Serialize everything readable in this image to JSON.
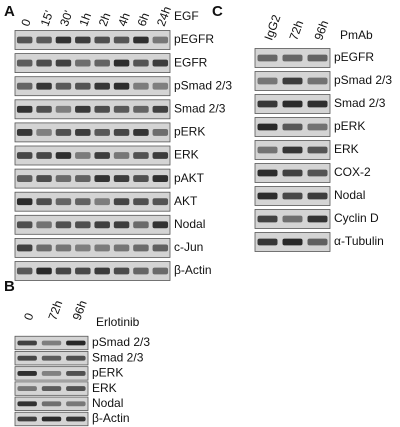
{
  "panels": [
    {
      "label": "A",
      "treatment": "EGF",
      "lanes": [
        "0",
        "15'",
        "30'",
        "1h",
        "2h",
        "4h",
        "6h",
        "24h"
      ],
      "rows": [
        "pEGFR",
        "EGFR",
        "pSmad 2/3",
        "Smad 2/3",
        "pERK",
        "ERK",
        "pAKT",
        "AKT",
        "Nodal",
        "c-Jun",
        "β-Actin"
      ]
    },
    {
      "label": "B",
      "treatment": "Erlotinib",
      "lanes": [
        "0",
        "72h",
        "96h"
      ],
      "rows": [
        "pSmad 2/3",
        "Smad 2/3",
        "pERK",
        "ERK",
        "Nodal",
        "β-Actin"
      ]
    },
    {
      "label": "C",
      "treatment": "PmAb",
      "lanes": [
        "IgG2",
        "72h",
        "96h"
      ],
      "rows": [
        "pEGFR",
        "pSmad 2/3",
        "Smad 2/3",
        "pERK",
        "ERK",
        "COX-2",
        "Nodal",
        "Cyclin D",
        "α-Tubulin"
      ]
    }
  ]
}
